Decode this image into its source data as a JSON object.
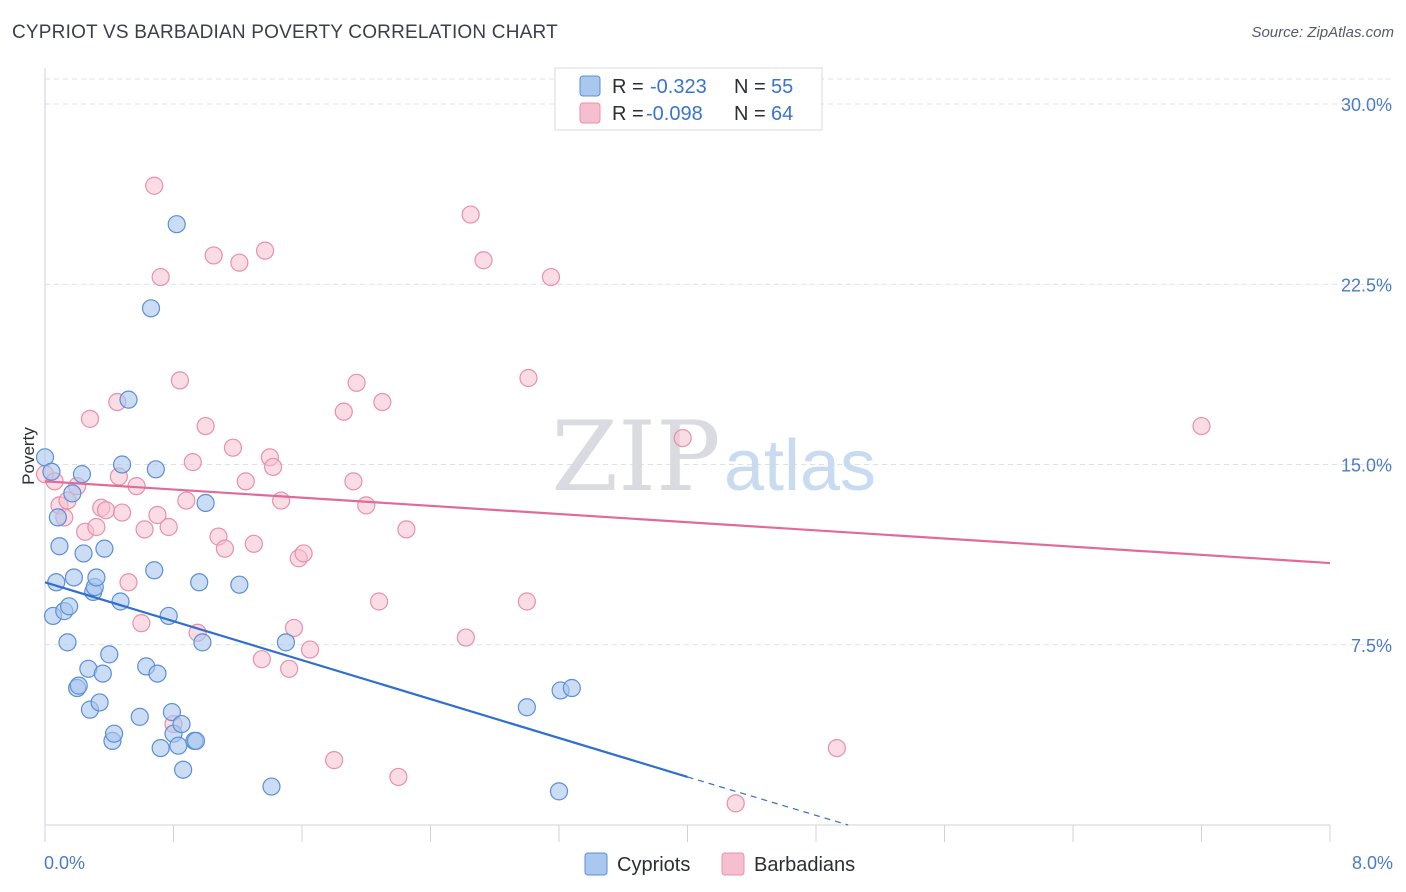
{
  "header": {
    "title": "CYPRIOT VS BARBADIAN POVERTY CORRELATION CHART",
    "source": "Source: ZipAtlas.com"
  },
  "watermark": {
    "zip": "ZIP",
    "atlas": "atlas"
  },
  "colors": {
    "cypriots_fill": "#a9c7ef",
    "cypriots_stroke": "#5b8fd6",
    "cypriots_line": "#2f6fcf",
    "barbadians_fill": "#f6bfd0",
    "barbadians_stroke": "#e890ac",
    "barbadians_line": "#e06b98",
    "tick_label": "#4a7cc7",
    "grid": "#dde1e7"
  },
  "stats_legend": [
    {
      "r_label": "R =",
      "r_value": "-0.323",
      "n_label": "N =",
      "n_value": "55"
    },
    {
      "r_label": "R =",
      "r_value": "-0.098",
      "n_label": "N =",
      "n_value": "64"
    }
  ],
  "chart_data": {
    "type": "scatter",
    "title": "CYPRIOT VS BARBADIAN POVERTY CORRELATION CHART",
    "xlabel": "",
    "ylabel": "Poverty",
    "xlim": [
      0,
      8.0
    ],
    "ylim": [
      0,
      31
    ],
    "x_tick_labels": [
      "0.0%",
      "8.0%"
    ],
    "y_ticks": [
      7.5,
      15.0,
      22.5,
      30.0
    ],
    "y_tick_labels": [
      "7.5%",
      "15.0%",
      "22.5%",
      "30.0%"
    ],
    "grid": true,
    "legend_position": "bottom-center",
    "series": [
      {
        "name": "Cypriots",
        "trend": {
          "x": [
            0.0,
            4.0
          ],
          "y": [
            10.1,
            2.0
          ],
          "dashed_to": [
            5.0,
            0.0
          ]
        },
        "points": [
          [
            0.0,
            15.3
          ],
          [
            0.04,
            14.7
          ],
          [
            0.07,
            10.1
          ],
          [
            0.05,
            8.7
          ],
          [
            0.08,
            12.8
          ],
          [
            0.09,
            11.6
          ],
          [
            0.12,
            8.9
          ],
          [
            0.14,
            7.6
          ],
          [
            0.15,
            9.1
          ],
          [
            0.17,
            13.8
          ],
          [
            0.18,
            10.3
          ],
          [
            0.2,
            5.7
          ],
          [
            0.21,
            5.8
          ],
          [
            0.23,
            14.6
          ],
          [
            0.24,
            11.3
          ],
          [
            0.27,
            6.5
          ],
          [
            0.28,
            4.8
          ],
          [
            0.3,
            9.7
          ],
          [
            0.31,
            9.9
          ],
          [
            0.32,
            10.3
          ],
          [
            0.34,
            5.1
          ],
          [
            0.36,
            6.3
          ],
          [
            0.37,
            11.5
          ],
          [
            0.4,
            7.1
          ],
          [
            0.42,
            3.5
          ],
          [
            0.43,
            3.8
          ],
          [
            0.47,
            9.3
          ],
          [
            0.48,
            15.0
          ],
          [
            0.52,
            17.7
          ],
          [
            0.59,
            4.5
          ],
          [
            0.63,
            6.6
          ],
          [
            0.66,
            21.5
          ],
          [
            0.68,
            10.6
          ],
          [
            0.69,
            14.8
          ],
          [
            0.7,
            6.3
          ],
          [
            0.72,
            3.2
          ],
          [
            0.77,
            8.7
          ],
          [
            0.79,
            4.7
          ],
          [
            0.8,
            3.8
          ],
          [
            0.82,
            25.0
          ],
          [
            0.83,
            3.3
          ],
          [
            0.85,
            4.2
          ],
          [
            0.86,
            2.3
          ],
          [
            0.93,
            3.5
          ],
          [
            0.94,
            3.5
          ],
          [
            0.96,
            10.1
          ],
          [
            0.98,
            7.6
          ],
          [
            1.0,
            13.4
          ],
          [
            1.21,
            10.0
          ],
          [
            1.41,
            1.6
          ],
          [
            1.5,
            7.6
          ],
          [
            3.0,
            4.9
          ],
          [
            3.2,
            1.4
          ],
          [
            3.21,
            5.6
          ],
          [
            3.28,
            5.7
          ]
        ]
      },
      {
        "name": "Barbadians",
        "trend": {
          "x": [
            0.0,
            8.0
          ],
          "y": [
            14.3,
            10.9
          ]
        },
        "points": [
          [
            0.0,
            14.6
          ],
          [
            0.06,
            14.3
          ],
          [
            0.09,
            13.3
          ],
          [
            0.12,
            12.8
          ],
          [
            0.14,
            13.5
          ],
          [
            0.2,
            14.1
          ],
          [
            0.25,
            12.2
          ],
          [
            0.28,
            16.9
          ],
          [
            0.32,
            12.4
          ],
          [
            0.35,
            13.2
          ],
          [
            0.38,
            13.1
          ],
          [
            0.45,
            17.6
          ],
          [
            0.46,
            14.5
          ],
          [
            0.48,
            13.0
          ],
          [
            0.52,
            10.1
          ],
          [
            0.57,
            14.1
          ],
          [
            0.6,
            8.4
          ],
          [
            0.62,
            12.3
          ],
          [
            0.68,
            26.6
          ],
          [
            0.7,
            12.9
          ],
          [
            0.72,
            22.8
          ],
          [
            0.77,
            12.4
          ],
          [
            0.8,
            4.2
          ],
          [
            0.84,
            18.5
          ],
          [
            0.88,
            13.5
          ],
          [
            0.92,
            15.1
          ],
          [
            0.95,
            8.0
          ],
          [
            1.0,
            16.6
          ],
          [
            1.05,
            23.7
          ],
          [
            1.08,
            12.0
          ],
          [
            1.12,
            11.5
          ],
          [
            1.17,
            15.7
          ],
          [
            1.21,
            23.4
          ],
          [
            1.25,
            14.3
          ],
          [
            1.3,
            11.7
          ],
          [
            1.35,
            6.9
          ],
          [
            1.37,
            23.9
          ],
          [
            1.4,
            15.3
          ],
          [
            1.42,
            14.9
          ],
          [
            1.47,
            13.5
          ],
          [
            1.52,
            6.5
          ],
          [
            1.55,
            8.2
          ],
          [
            1.58,
            11.1
          ],
          [
            1.61,
            11.3
          ],
          [
            1.65,
            7.3
          ],
          [
            1.8,
            2.7
          ],
          [
            1.86,
            17.2
          ],
          [
            1.92,
            14.3
          ],
          [
            1.94,
            18.4
          ],
          [
            2.0,
            13.3
          ],
          [
            2.08,
            9.3
          ],
          [
            2.1,
            17.6
          ],
          [
            2.2,
            2.0
          ],
          [
            2.25,
            12.3
          ],
          [
            2.62,
            7.8
          ],
          [
            2.65,
            25.4
          ],
          [
            2.73,
            23.5
          ],
          [
            3.0,
            9.3
          ],
          [
            3.01,
            18.6
          ],
          [
            3.15,
            22.8
          ],
          [
            3.97,
            16.1
          ],
          [
            4.3,
            0.9
          ],
          [
            4.93,
            3.2
          ],
          [
            7.2,
            16.6
          ]
        ]
      }
    ]
  }
}
